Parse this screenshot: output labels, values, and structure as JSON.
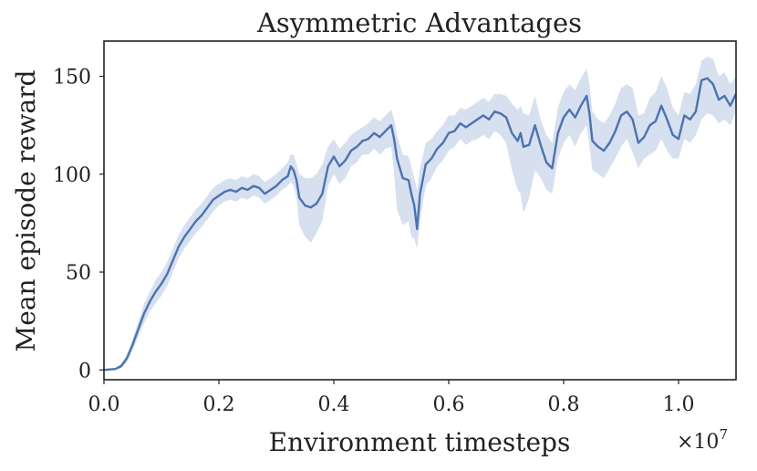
{
  "chart_data": {
    "type": "line",
    "title": "Asymmetric Advantages",
    "xlabel": "Environment timesteps",
    "ylabel": "Mean episode reward",
    "x_multiplier": "×10",
    "x_multiplier_exp": "7",
    "xlim": [
      0.0,
      1.1
    ],
    "ylim": [
      -5,
      168
    ],
    "x_ticks": [
      0.0,
      0.2,
      0.4,
      0.6,
      0.8,
      1.0
    ],
    "x_tick_labels": [
      "0.0",
      "0.2",
      "0.4",
      "0.6",
      "0.8",
      "1.0"
    ],
    "y_ticks": [
      0,
      50,
      100,
      150
    ],
    "y_tick_labels": [
      "0",
      "50",
      "100",
      "150"
    ],
    "grid": false,
    "colors": {
      "line": "#4c72b0",
      "band": "#c9d6ea",
      "axes": "#222222"
    },
    "series": [
      {
        "x": [
          0.0,
          0.02,
          0.03,
          0.04,
          0.05,
          0.06,
          0.07,
          0.08,
          0.09,
          0.1,
          0.11,
          0.12,
          0.13,
          0.14,
          0.15,
          0.16,
          0.17,
          0.18,
          0.19,
          0.2,
          0.21,
          0.22,
          0.23,
          0.24,
          0.25,
          0.26,
          0.27,
          0.28,
          0.29,
          0.3,
          0.31,
          0.32,
          0.325,
          0.33,
          0.335,
          0.34,
          0.35,
          0.36,
          0.37,
          0.38,
          0.39,
          0.4,
          0.41,
          0.42,
          0.43,
          0.44,
          0.45,
          0.46,
          0.47,
          0.48,
          0.49,
          0.5,
          0.505,
          0.51,
          0.52,
          0.53,
          0.535,
          0.54,
          0.545,
          0.55,
          0.56,
          0.57,
          0.58,
          0.59,
          0.6,
          0.61,
          0.62,
          0.63,
          0.64,
          0.65,
          0.66,
          0.67,
          0.68,
          0.69,
          0.7,
          0.71,
          0.72,
          0.725,
          0.73,
          0.74,
          0.75,
          0.76,
          0.77,
          0.78,
          0.79,
          0.8,
          0.81,
          0.82,
          0.83,
          0.84,
          0.845,
          0.85,
          0.86,
          0.87,
          0.88,
          0.89,
          0.9,
          0.91,
          0.92,
          0.93,
          0.94,
          0.95,
          0.96,
          0.97,
          0.98,
          0.99,
          1.0,
          1.01,
          1.02,
          1.03,
          1.04,
          1.05,
          1.06,
          1.07,
          1.08,
          1.09,
          1.1
        ],
        "y": [
          0,
          0.5,
          2,
          6,
          13,
          21,
          29,
          35,
          40,
          44,
          49,
          56,
          63,
          68,
          72,
          76,
          79,
          83,
          87,
          89,
          91,
          92,
          91,
          93,
          92,
          94,
          93,
          90,
          92,
          94,
          97,
          99,
          104,
          102,
          97,
          88,
          84,
          83,
          85,
          90,
          104,
          109,
          104,
          107,
          112,
          114,
          117,
          118,
          121,
          119,
          122,
          125,
          118,
          108,
          98,
          97,
          90,
          84,
          72,
          90,
          105,
          108,
          113,
          116,
          121,
          122,
          126,
          124,
          126,
          128,
          130,
          128,
          132,
          131,
          129,
          121,
          117,
          121,
          114,
          115,
          125,
          115,
          106,
          103,
          121,
          129,
          133,
          129,
          135,
          140,
          131,
          117,
          114,
          112,
          116,
          122,
          130,
          132,
          128,
          116,
          119,
          125,
          127,
          135,
          128,
          120,
          118,
          130,
          128,
          132,
          148,
          149,
          146,
          138,
          140,
          135,
          141
        ],
        "lower": [
          0,
          0,
          1,
          4,
          10,
          17,
          24,
          30,
          34,
          38,
          43,
          50,
          57,
          62,
          66,
          70,
          73,
          77,
          81,
          84,
          86,
          87,
          86,
          88,
          87,
          89,
          88,
          85,
          87,
          89,
          92,
          94,
          96,
          94,
          88,
          74,
          68,
          65,
          70,
          76,
          94,
          100,
          95,
          98,
          104,
          106,
          110,
          110,
          113,
          110,
          113,
          114,
          100,
          82,
          74,
          76,
          68,
          67,
          62,
          76,
          94,
          98,
          104,
          107,
          112,
          114,
          118,
          115,
          117,
          118,
          120,
          118,
          122,
          120,
          116,
          102,
          92,
          90,
          80,
          88,
          102,
          98,
          92,
          90,
          108,
          116,
          120,
          114,
          121,
          125,
          114,
          102,
          100,
          98,
          103,
          108,
          114,
          118,
          111,
          103,
          108,
          110,
          112,
          118,
          112,
          108,
          108,
          118,
          116,
          120,
          128,
          131,
          130,
          126,
          128,
          125,
          132
        ],
        "upper": [
          0,
          1,
          3,
          8,
          16,
          25,
          34,
          40,
          46,
          50,
          55,
          62,
          69,
          74,
          78,
          82,
          85,
          89,
          93,
          95,
          97,
          98,
          97,
          99,
          98,
          100,
          99,
          96,
          98,
          100,
          103,
          106,
          110,
          110,
          105,
          100,
          98,
          98,
          100,
          105,
          114,
          118,
          113,
          116,
          120,
          122,
          124,
          126,
          129,
          127,
          130,
          133,
          128,
          120,
          110,
          109,
          104,
          98,
          92,
          103,
          116,
          118,
          122,
          125,
          130,
          130,
          134,
          133,
          135,
          137,
          139,
          137,
          141,
          141,
          140,
          136,
          133,
          135,
          131,
          130,
          140,
          128,
          120,
          116,
          134,
          142,
          146,
          143,
          149,
          154,
          146,
          132,
          128,
          126,
          130,
          136,
          144,
          146,
          144,
          130,
          131,
          139,
          142,
          150,
          144,
          134,
          130,
          142,
          141,
          146,
          158,
          160,
          159,
          150,
          152,
          146,
          150
        ]
      }
    ]
  }
}
